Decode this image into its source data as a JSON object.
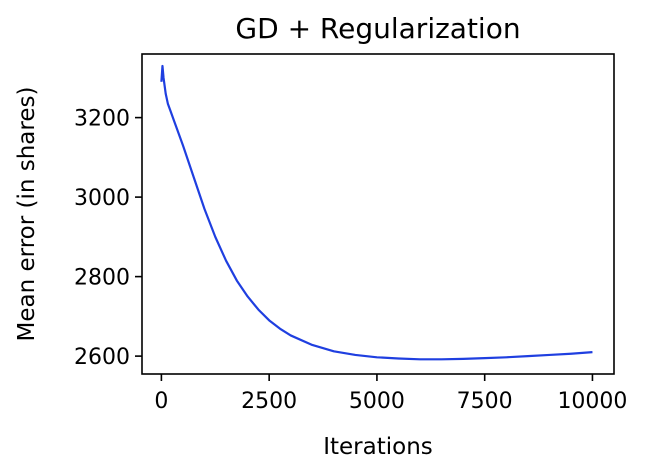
{
  "chart_data": {
    "type": "line",
    "title": "GD + Regularization",
    "xlabel": "Iterations",
    "ylabel": "Mean error (in shares)",
    "xlim": [
      -450,
      10500
    ],
    "ylim": [
      2555,
      3360
    ],
    "xticks": [
      0,
      2500,
      5000,
      7500,
      10000
    ],
    "xtick_labels": [
      "0",
      "2500",
      "5000",
      "7500",
      "10000"
    ],
    "yticks": [
      2600,
      2800,
      3000,
      3200
    ],
    "ytick_labels": [
      "2600",
      "2800",
      "3000",
      "3200"
    ],
    "grid": false,
    "series": [
      {
        "color": "#1f3fe0",
        "x": [
          0,
          25,
          50,
          100,
          150,
          200,
          300,
          400,
          500,
          750,
          1000,
          1250,
          1500,
          1750,
          2000,
          2250,
          2500,
          2750,
          3000,
          3500,
          4000,
          4500,
          5000,
          5500,
          6000,
          6500,
          7000,
          7500,
          8000,
          8500,
          9000,
          9500,
          10000
        ],
        "y": [
          3290,
          3330,
          3300,
          3260,
          3235,
          3220,
          3190,
          3160,
          3130,
          3050,
          2970,
          2900,
          2840,
          2790,
          2750,
          2717,
          2690,
          2669,
          2652,
          2628,
          2612,
          2603,
          2597,
          2594,
          2592,
          2592,
          2593,
          2595,
          2597,
          2600,
          2603,
          2606,
          2610
        ]
      }
    ]
  }
}
